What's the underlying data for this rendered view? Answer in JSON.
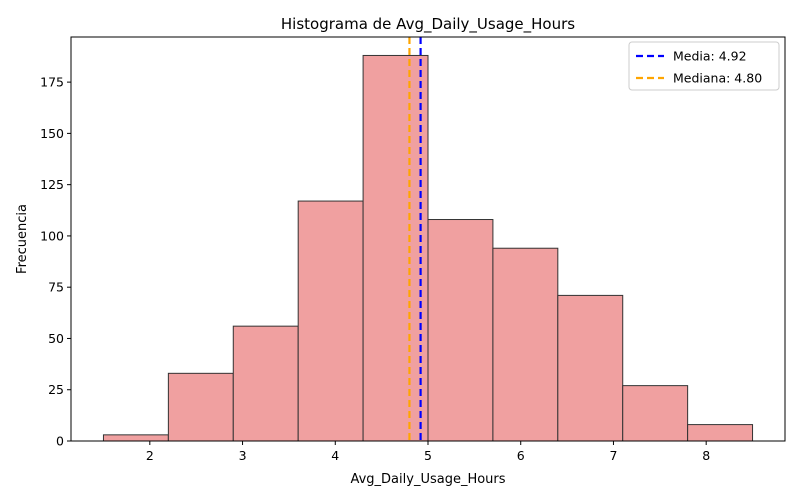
{
  "chart_data": {
    "type": "bar",
    "subtype": "histogram",
    "title": "Histograma de Avg_Daily_Usage_Hours",
    "xlabel": "Avg_Daily_Usage_Hours",
    "ylabel": "Frecuencia",
    "bins": [
      {
        "start": 1.5,
        "end": 2.2,
        "value": 3
      },
      {
        "start": 2.2,
        "end": 2.9,
        "value": 33
      },
      {
        "start": 2.9,
        "end": 3.6,
        "value": 56
      },
      {
        "start": 3.6,
        "end": 4.3,
        "value": 117
      },
      {
        "start": 4.3,
        "end": 5.0,
        "value": 188
      },
      {
        "start": 5.0,
        "end": 5.7,
        "value": 108
      },
      {
        "start": 5.7,
        "end": 6.4,
        "value": 94
      },
      {
        "start": 6.4,
        "end": 7.1,
        "value": 71
      },
      {
        "start": 7.1,
        "end": 7.8,
        "value": 27
      },
      {
        "start": 7.8,
        "end": 8.5,
        "value": 8
      }
    ],
    "xlim": [
      1.15,
      8.85
    ],
    "ylim": [
      0,
      197
    ],
    "xticks": [
      2,
      3,
      4,
      5,
      6,
      7,
      8
    ],
    "yticks": [
      0,
      25,
      50,
      75,
      100,
      125,
      150,
      175
    ],
    "bar_color": "#f0a0a0",
    "bar_edge_color": "#333333",
    "reference_lines": [
      {
        "label": "Media: 4.92",
        "x": 4.92,
        "color": "#0000ff",
        "style": "dashed"
      },
      {
        "label": "Mediana: 4.80",
        "x": 4.8,
        "color": "#ffa500",
        "style": "dashed"
      }
    ],
    "legend_position": "top-right",
    "grid": false
  }
}
